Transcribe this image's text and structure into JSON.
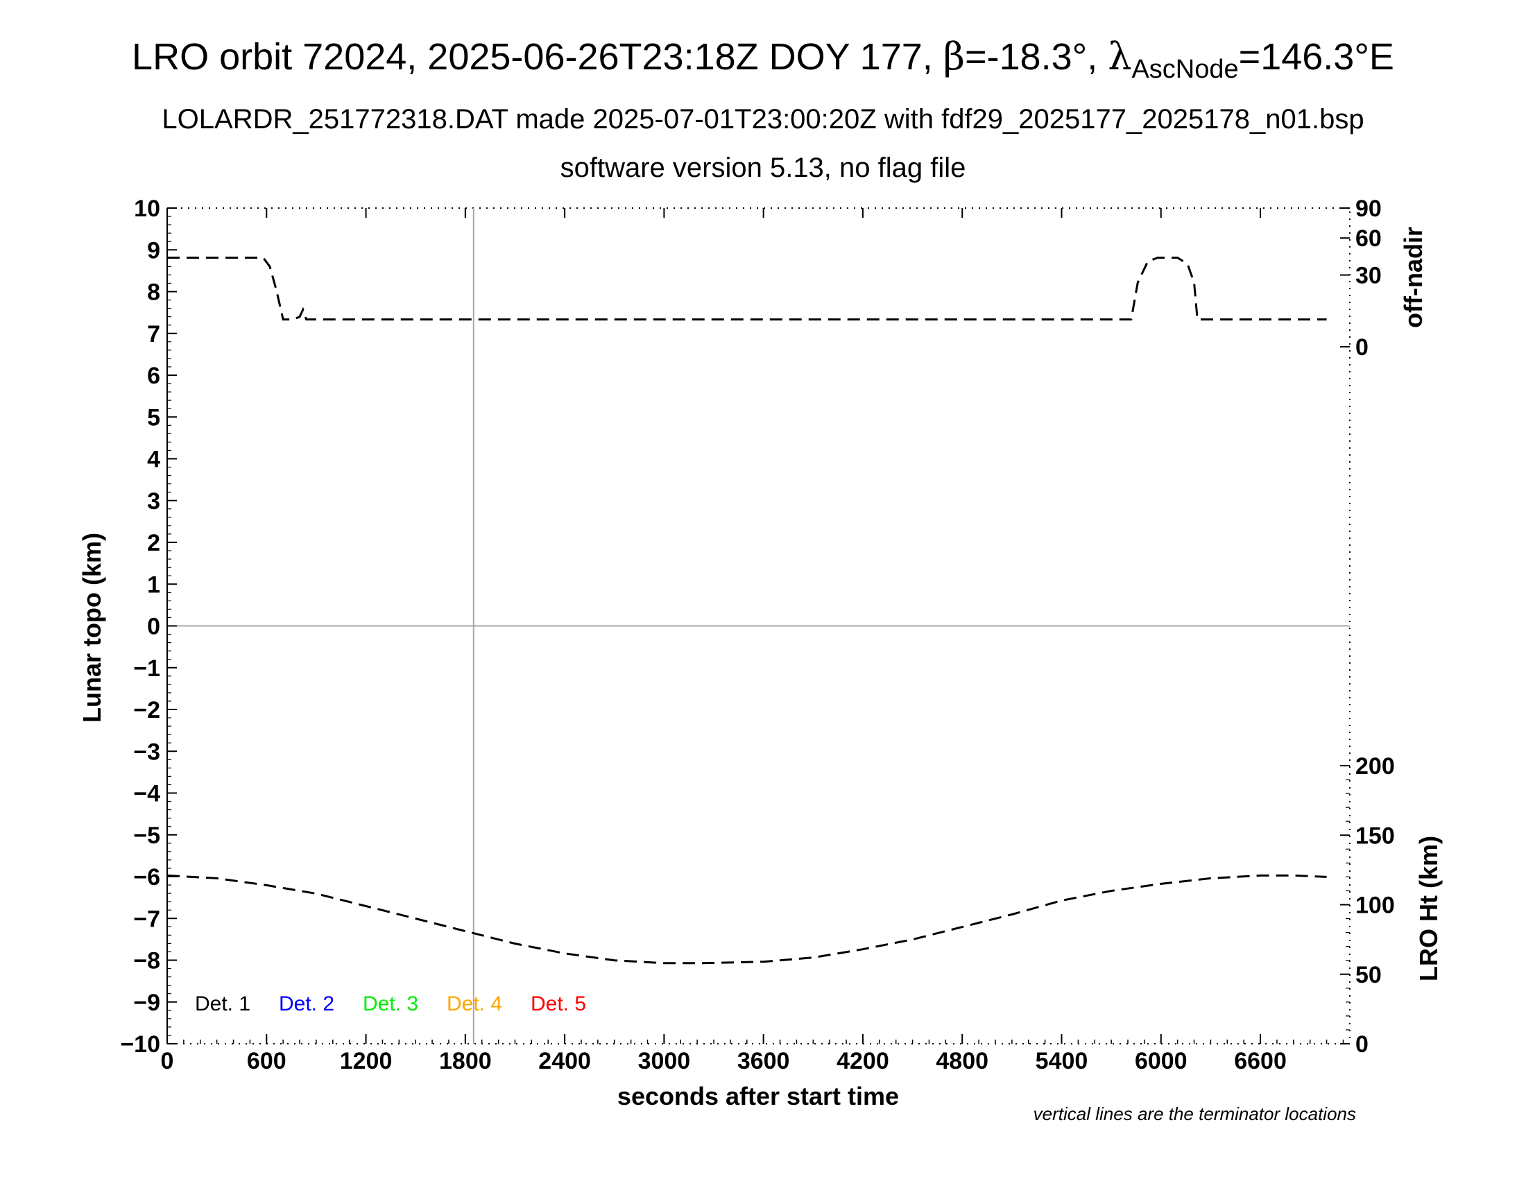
{
  "title": {
    "main_prefix": "LRO orbit 72024, 2025-06-26T23:18Z DOY 177, ",
    "beta_symbol": "β",
    "beta_value": "=-18.3°, ",
    "lambda_symbol": "λ",
    "lambda_subscript": "AscNode",
    "lambda_value": "=146.3°E",
    "subtitle": "LOLARDR_251772318.DAT made 2025-07-01T23:00:20Z with fdf29_2025177_2025178_n01.bsp",
    "subtitle2": "software version 5.13, no flag file"
  },
  "footnote": "vertical lines are the terminator locations",
  "chart_data": {
    "type": "line",
    "xlabel": "seconds after start time",
    "ylabel_left": "Lunar topo (km)",
    "ylabel_right_top": "off-nadir",
    "ylabel_right_bottom": "LRO Ht (km)",
    "xlim": [
      0,
      7140
    ],
    "ylim_left": [
      -10,
      10
    ],
    "x_ticks": [
      "0",
      "600",
      "1200",
      "1800",
      "2400",
      "3000",
      "3600",
      "4200",
      "4800",
      "5400",
      "6000",
      "6600"
    ],
    "x_tick_values": [
      0,
      600,
      1200,
      1800,
      2400,
      3000,
      3600,
      4200,
      4800,
      5400,
      6000,
      6600
    ],
    "y_ticks_left": [
      "10",
      "9",
      "8",
      "7",
      "6",
      "5",
      "4",
      "3",
      "2",
      "1",
      "0",
      "−1",
      "−2",
      "−3",
      "−4",
      "−5",
      "−6",
      "−7",
      "−8",
      "−9",
      "−10"
    ],
    "y_tick_values_left": [
      10,
      9,
      8,
      7,
      6,
      5,
      4,
      3,
      2,
      1,
      0,
      -1,
      -2,
      -3,
      -4,
      -5,
      -6,
      -7,
      -8,
      -9,
      -10
    ],
    "y_ticks_right_top": [
      "90",
      "60",
      "30",
      "0"
    ],
    "y_tick_values_right_top": [
      90,
      60,
      30,
      0
    ],
    "y_ticks_right_bottom": [
      "200",
      "150",
      "100",
      "50",
      "0"
    ],
    "y_tick_values_right_bottom": [
      200,
      150,
      100,
      50,
      0
    ],
    "terminator_x": [
      1850
    ],
    "zero_line_y": 0,
    "grid": false,
    "legend": [
      {
        "label": "Det. 1",
        "color": "#000000"
      },
      {
        "label": "Det. 2",
        "color": "#0000ff"
      },
      {
        "label": "Det. 3",
        "color": "#00ee00"
      },
      {
        "label": "Det. 4",
        "color": "#ffa500"
      },
      {
        "label": "Det. 5",
        "color": "#ff0000"
      }
    ],
    "legend_position": "bottom-left",
    "series": [
      {
        "axis": "off-nadir",
        "style": "dashed",
        "color": "#000000",
        "x": [
          0,
          300,
          580,
          620,
          660,
          700,
          760,
          800,
          820,
          840,
          880,
          1200,
          1800,
          2400,
          3000,
          3600,
          4200,
          4800,
          5100,
          5400,
          5800,
          5820,
          5860,
          5920,
          5980,
          6100,
          6160,
          6200,
          6220,
          6300,
          6400,
          6600,
          7000
        ],
        "y": [
          43,
          43,
          43,
          36,
          20,
          6,
          6,
          7,
          10,
          6,
          6,
          6,
          6,
          6,
          6,
          6,
          6,
          6,
          6,
          6,
          6,
          6,
          25,
          40,
          43,
          43,
          38,
          25,
          6,
          6,
          6,
          6,
          6
        ]
      },
      {
        "axis": "LRO Ht",
        "style": "dashed",
        "color": "#000000",
        "x": [
          0,
          300,
          600,
          900,
          1200,
          1500,
          1800,
          2100,
          2400,
          2700,
          3000,
          3240,
          3600,
          3900,
          4200,
          4500,
          4800,
          5100,
          5400,
          5700,
          6000,
          6300,
          6600,
          6800,
          7000
        ],
        "y": [
          121,
          119,
          114,
          108,
          99,
          90,
          81,
          72,
          65,
          60,
          58,
          58,
          59,
          62,
          68,
          75,
          84,
          93,
          103,
          110,
          115,
          119,
          121,
          121,
          120
        ]
      }
    ]
  }
}
